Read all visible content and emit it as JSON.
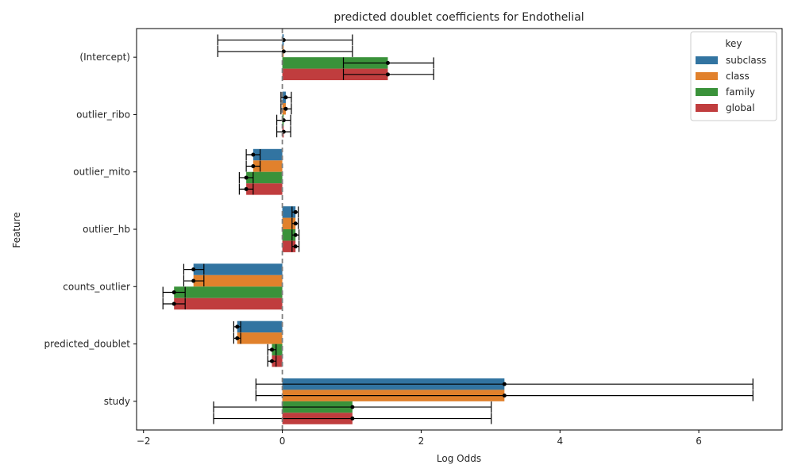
{
  "chart_data": {
    "type": "bar",
    "orientation": "horizontal",
    "title": "predicted doublet coefficients for Endothelial",
    "xlabel": "Log Odds",
    "ylabel": "Feature",
    "categories": [
      "(Intercept)",
      "outlier_ribo",
      "outlier_mito",
      "outlier_hb",
      "counts_outlier",
      "predicted_doublet",
      "study"
    ],
    "xlim": [
      -2.1,
      7.2
    ],
    "xticks": [
      -2,
      0,
      2,
      4,
      6
    ],
    "reference_line_x": 0,
    "legend": {
      "title": "key",
      "position": "top-right"
    },
    "series": [
      {
        "name": "subclass",
        "color": "#3274a1",
        "values": [
          0.02,
          0.05,
          -0.42,
          0.19,
          -1.28,
          -0.65,
          3.2
        ],
        "ci_low": [
          -0.93,
          -0.02,
          -0.52,
          0.14,
          -1.42,
          -0.7,
          -0.38
        ],
        "ci_high": [
          1.01,
          0.13,
          -0.32,
          0.23,
          -1.13,
          -0.6,
          6.78
        ]
      },
      {
        "name": "class",
        "color": "#e1812c",
        "values": [
          0.02,
          0.05,
          -0.42,
          0.19,
          -1.28,
          -0.65,
          3.2
        ],
        "ci_low": [
          -0.93,
          -0.02,
          -0.52,
          0.14,
          -1.42,
          -0.7,
          -0.38
        ],
        "ci_high": [
          1.01,
          0.13,
          -0.32,
          0.23,
          -1.13,
          -0.6,
          6.78
        ]
      },
      {
        "name": "family",
        "color": "#3a923a",
        "values": [
          1.52,
          0.02,
          -0.52,
          0.19,
          -1.56,
          -0.15,
          1.01
        ],
        "ci_low": [
          0.88,
          -0.08,
          -0.62,
          0.14,
          -1.72,
          -0.21,
          -0.99
        ],
        "ci_high": [
          2.18,
          0.12,
          -0.42,
          0.24,
          -1.4,
          -0.09,
          3.01
        ]
      },
      {
        "name": "global",
        "color": "#c03d3e",
        "values": [
          1.52,
          0.02,
          -0.52,
          0.19,
          -1.56,
          -0.15,
          1.01
        ],
        "ci_low": [
          0.88,
          -0.08,
          -0.62,
          0.14,
          -1.72,
          -0.21,
          -0.99
        ],
        "ci_high": [
          2.18,
          0.12,
          -0.42,
          0.24,
          -1.4,
          -0.09,
          3.01
        ]
      }
    ]
  }
}
